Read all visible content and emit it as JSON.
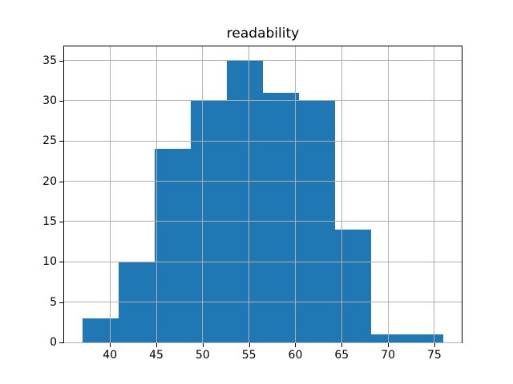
{
  "title": "readability",
  "chart_data": {
    "type": "histogram",
    "title": "readability",
    "xlabel": "",
    "ylabel": "",
    "bin_edges": [
      37.0,
      40.9,
      44.8,
      48.7,
      52.6,
      56.5,
      60.4,
      64.3,
      68.2,
      72.1,
      76.0
    ],
    "counts": [
      3,
      10,
      24,
      30,
      35,
      31,
      30,
      14,
      1,
      1
    ],
    "x_ticks": [
      40,
      45,
      50,
      55,
      60,
      65,
      70,
      75
    ],
    "y_ticks": [
      0,
      5,
      10,
      15,
      20,
      25,
      30,
      35
    ],
    "xlim": [
      35.05,
      77.95
    ],
    "ylim": [
      0,
      36.75
    ],
    "grid": true,
    "legend": "none",
    "bar_color": "#1f77b4",
    "grid_color": "#b0b0b0",
    "spine_color": "#000000",
    "background_color": "#ffffff"
  }
}
